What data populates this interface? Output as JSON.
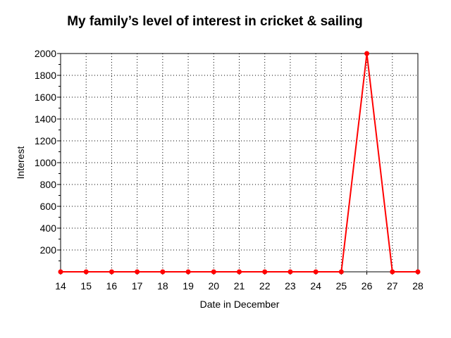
{
  "chart_data": {
    "type": "line",
    "title": "My family’s level of interest in cricket & sailing",
    "xlabel": "Date in December",
    "ylabel": "Interest",
    "x": [
      14,
      15,
      16,
      17,
      18,
      19,
      20,
      21,
      22,
      23,
      24,
      25,
      26,
      27,
      28
    ],
    "series": [
      {
        "values": [
          0,
          0,
          0,
          0,
          0,
          0,
          0,
          0,
          0,
          0,
          0,
          0,
          2000,
          0,
          0
        ],
        "color": "#ff0000"
      }
    ],
    "xlim": [
      14,
      28
    ],
    "ylim": [
      0,
      2000
    ],
    "yticks": [
      200,
      400,
      600,
      800,
      1000,
      1200,
      1400,
      1600,
      1800,
      2000
    ],
    "grid": true
  }
}
